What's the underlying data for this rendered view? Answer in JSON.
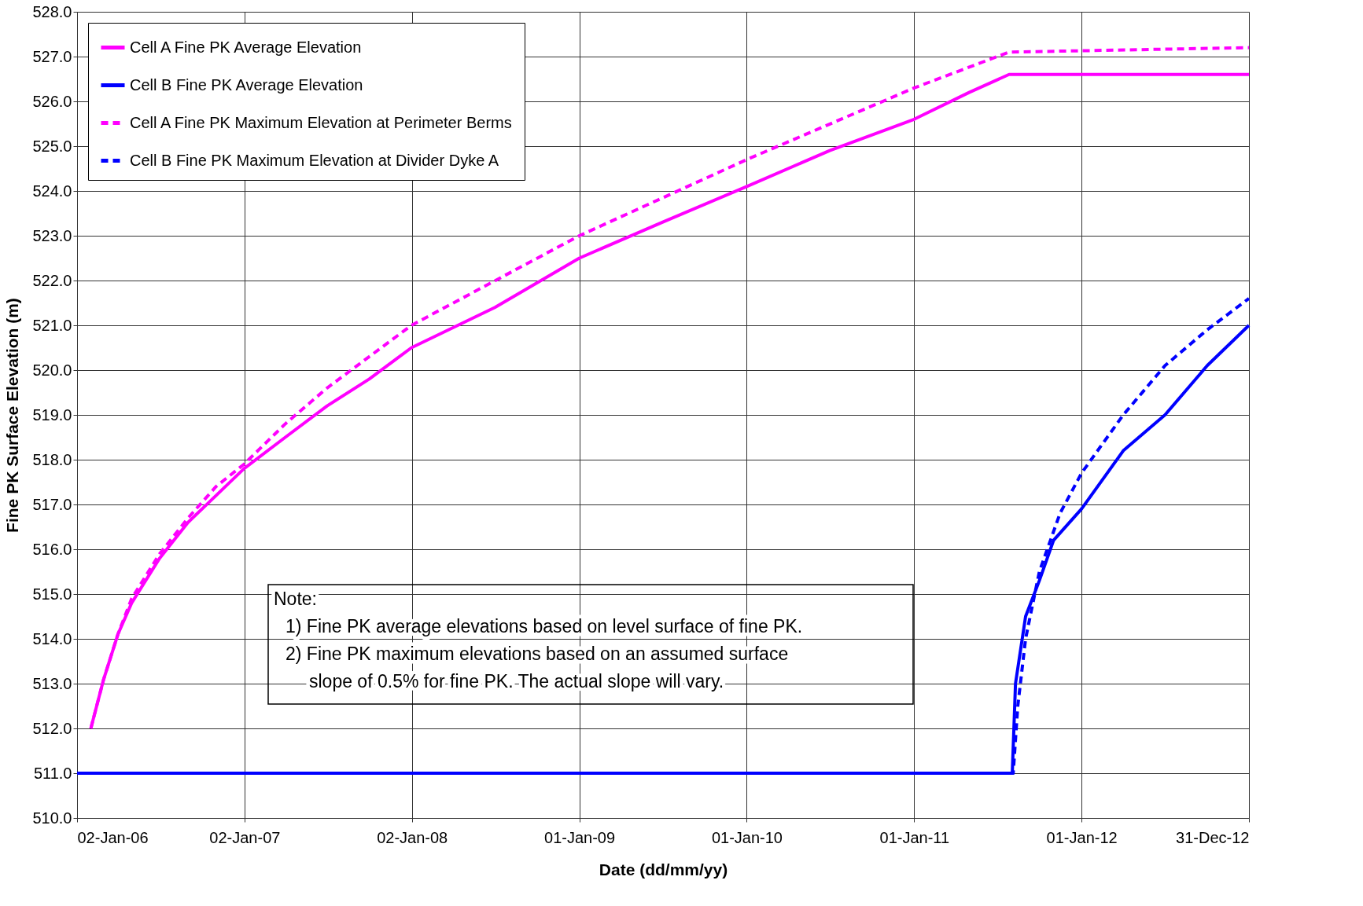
{
  "chart_data": {
    "type": "line",
    "xlabel": "Date (dd/mm/yy)",
    "ylabel": "Fine PK Surface Elevation (m)",
    "xlim": [
      "2006-01-02",
      "2012-12-31"
    ],
    "xticks": [
      {
        "value": "2006-01-02",
        "label": "02-Jan-06"
      },
      {
        "value": "2007-01-02",
        "label": "02-Jan-07"
      },
      {
        "value": "2008-01-02",
        "label": "02-Jan-08"
      },
      {
        "value": "2009-01-01",
        "label": "01-Jan-09"
      },
      {
        "value": "2010-01-01",
        "label": "01-Jan-10"
      },
      {
        "value": "2011-01-01",
        "label": "01-Jan-11"
      },
      {
        "value": "2012-01-01",
        "label": "01-Jan-12"
      },
      {
        "value": "2012-12-31",
        "label": "31-Dec-12"
      }
    ],
    "ylim": [
      510,
      528
    ],
    "yticks": [
      {
        "value": 510,
        "label": "510.0"
      },
      {
        "value": 511,
        "label": "511.0"
      },
      {
        "value": 512,
        "label": "512.0"
      },
      {
        "value": 513,
        "label": "513.0"
      },
      {
        "value": 514,
        "label": "514.0"
      },
      {
        "value": 515,
        "label": "515.0"
      },
      {
        "value": 516,
        "label": "516.0"
      },
      {
        "value": 517,
        "label": "517.0"
      },
      {
        "value": 518,
        "label": "518.0"
      },
      {
        "value": 519,
        "label": "519.0"
      },
      {
        "value": 520,
        "label": "520.0"
      },
      {
        "value": 521,
        "label": "521.0"
      },
      {
        "value": 522,
        "label": "522.0"
      },
      {
        "value": 523,
        "label": "523.0"
      },
      {
        "value": 524,
        "label": "524.0"
      },
      {
        "value": 525,
        "label": "525.0"
      },
      {
        "value": 526,
        "label": "526.0"
      },
      {
        "value": 527,
        "label": "527.0"
      },
      {
        "value": 528,
        "label": "528.0"
      }
    ],
    "grid": true,
    "legend": "top left",
    "marker": "none",
    "series": [
      {
        "name": "Cell A Fine PK Average Elevation",
        "color": "#ff00ff",
        "line_style": "solid",
        "x": [
          "2006-02-01",
          "2006-03-01",
          "2006-04-01",
          "2006-05-01",
          "2006-07-01",
          "2006-09-01",
          "2006-11-01",
          "2007-01-01",
          "2007-04-01",
          "2007-07-01",
          "2007-10-01",
          "2008-01-01",
          "2008-07-01",
          "2009-01-01",
          "2009-07-01",
          "2010-01-01",
          "2010-07-01",
          "2011-01-01",
          "2011-05-01",
          "2011-07-27",
          "2012-12-31"
        ],
        "values": [
          512.0,
          513.1,
          514.1,
          514.8,
          515.8,
          516.6,
          517.2,
          517.8,
          518.5,
          519.2,
          519.8,
          520.5,
          521.4,
          522.5,
          523.3,
          524.1,
          524.9,
          525.6,
          526.2,
          526.6,
          526.6
        ]
      },
      {
        "name": "Cell B Fine PK Average  Elevation",
        "color": "#0000ff",
        "line_style": "solid",
        "x": [
          "2006-01-02",
          "2011-08-03",
          "2011-08-10",
          "2011-09-01",
          "2011-10-01",
          "2011-11-01",
          "2012-01-01",
          "2012-04-01",
          "2012-07-01",
          "2012-10-01",
          "2012-12-31"
        ],
        "values": [
          511.0,
          511.0,
          513.0,
          514.5,
          515.3,
          516.2,
          516.9,
          518.2,
          519.0,
          520.1,
          521.0
        ]
      },
      {
        "name": "Cell A Fine PK Maximum Elevation at Perimeter Berms",
        "color": "#ff00ff",
        "line_style": "dashed",
        "x": [
          "2006-02-01",
          "2006-03-01",
          "2006-04-01",
          "2006-05-01",
          "2006-07-01",
          "2006-09-01",
          "2006-11-01",
          "2007-01-01",
          "2007-04-01",
          "2007-07-01",
          "2008-01-01",
          "2009-01-01",
          "2010-01-01",
          "2011-01-01",
          "2011-07-27",
          "2012-12-31"
        ],
        "values": [
          512.0,
          513.1,
          514.1,
          514.9,
          515.9,
          516.7,
          517.4,
          517.9,
          518.8,
          519.6,
          521.0,
          523.0,
          524.7,
          526.3,
          527.1,
          527.2
        ]
      },
      {
        "name": "Cell B Fine PK Maximum Elevation at Divider Dyke A",
        "color": "#0000ff",
        "line_style": "dashed",
        "x": [
          "2006-01-02",
          "2011-08-05",
          "2011-08-15",
          "2011-09-01",
          "2011-10-01",
          "2011-11-15",
          "2012-01-01",
          "2012-04-01",
          "2012-07-01",
          "2012-10-01",
          "2012-12-31"
        ],
        "values": [
          511.0,
          511.0,
          512.5,
          514.0,
          515.5,
          516.8,
          517.7,
          519.0,
          520.1,
          520.9,
          521.6
        ]
      }
    ],
    "annotations": [
      "Note:\n  1) Fine PK average elevations based on level surface of fine PK.\n  2) Fine PK maximum elevations based on an assumed surface\n      slope of 0.5% for fine PK.  The actual slope will vary."
    ]
  }
}
